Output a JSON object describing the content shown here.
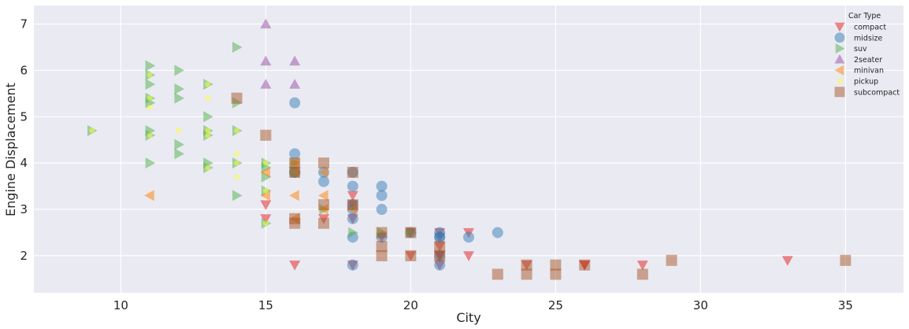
{
  "chart_data": {
    "type": "scatter",
    "xlabel": "City",
    "ylabel": "Engine Displacement",
    "xlim": [
      7,
      37
    ],
    "ylim": [
      1.2,
      7.4
    ],
    "xticks": [
      10,
      15,
      20,
      25,
      30,
      35
    ],
    "yticks": [
      2,
      3,
      4,
      5,
      6,
      7
    ],
    "grid": true,
    "legend": {
      "title": "Car Type",
      "placement": "top-right"
    },
    "series": [
      {
        "name": "compact",
        "marker": "triangle-down",
        "color": "#e41a1c",
        "points": [
          [
            18,
            1.8
          ],
          [
            21,
            1.8
          ],
          [
            20,
            2.0
          ],
          [
            21,
            2.0
          ],
          [
            15,
            2.8
          ],
          [
            18,
            2.8
          ],
          [
            18,
            3.1
          ],
          [
            21,
            2.0
          ],
          [
            21,
            2.4
          ],
          [
            22,
            2.0
          ],
          [
            22,
            2.5
          ],
          [
            24,
            1.8
          ],
          [
            26,
            1.8
          ],
          [
            28,
            1.8
          ],
          [
            33,
            1.9
          ],
          [
            16,
            1.8
          ],
          [
            20,
            2.5
          ],
          [
            21,
            2.5
          ],
          [
            15,
            3.1
          ],
          [
            17,
            2.8
          ],
          [
            18,
            3.3
          ],
          [
            19,
            2.4
          ],
          [
            21,
            2.2
          ],
          [
            26,
            1.8
          ]
        ]
      },
      {
        "name": "midsize",
        "marker": "circle",
        "color": "#377eb8",
        "points": [
          [
            16,
            5.3
          ],
          [
            16,
            3.8
          ],
          [
            17,
            3.8
          ],
          [
            18,
            3.8
          ],
          [
            16,
            4.2
          ],
          [
            17,
            3.6
          ],
          [
            18,
            3.5
          ],
          [
            19,
            3.5
          ],
          [
            19,
            3.3
          ],
          [
            19,
            3.0
          ],
          [
            18,
            3.1
          ],
          [
            18,
            2.8
          ],
          [
            18,
            2.4
          ],
          [
            19,
            2.4
          ],
          [
            21,
            2.4
          ],
          [
            21,
            2.5
          ],
          [
            21,
            2.4
          ],
          [
            22,
            2.4
          ],
          [
            23,
            2.5
          ],
          [
            21,
            1.8
          ],
          [
            18,
            1.8
          ],
          [
            16,
            3.8
          ],
          [
            18,
            3.0
          ],
          [
            20,
            2.5
          ],
          [
            21,
            2.0
          ]
        ]
      },
      {
        "name": "suv",
        "marker": "triangle-right",
        "color": "#4daf4a",
        "points": [
          [
            9,
            4.7
          ],
          [
            11,
            6.1
          ],
          [
            11,
            5.9
          ],
          [
            11,
            5.7
          ],
          [
            11,
            5.4
          ],
          [
            11,
            5.3
          ],
          [
            11,
            4.7
          ],
          [
            11,
            4.6
          ],
          [
            11,
            4.0
          ],
          [
            12,
            6.0
          ],
          [
            12,
            5.6
          ],
          [
            12,
            5.4
          ],
          [
            12,
            4.4
          ],
          [
            12,
            4.2
          ],
          [
            13,
            5.7
          ],
          [
            13,
            5.0
          ],
          [
            13,
            4.7
          ],
          [
            13,
            4.6
          ],
          [
            13,
            4.0
          ],
          [
            13,
            3.9
          ],
          [
            14,
            6.5
          ],
          [
            14,
            5.3
          ],
          [
            14,
            4.7
          ],
          [
            14,
            4.0
          ],
          [
            14,
            3.3
          ],
          [
            15,
            4.0
          ],
          [
            15,
            3.7
          ],
          [
            15,
            3.4
          ],
          [
            15,
            2.7
          ],
          [
            16,
            4.0
          ],
          [
            16,
            3.8
          ],
          [
            17,
            3.0
          ],
          [
            18,
            2.5
          ],
          [
            19,
            2.5
          ],
          [
            20,
            2.5
          ],
          [
            15,
            3.9
          ]
        ]
      },
      {
        "name": "2seater",
        "marker": "triangle-up",
        "color": "#984ea3",
        "points": [
          [
            15,
            7.0
          ],
          [
            15,
            6.2
          ],
          [
            16,
            6.2
          ],
          [
            15,
            5.7
          ],
          [
            16,
            5.7
          ]
        ]
      },
      {
        "name": "minivan",
        "marker": "triangle-left",
        "color": "#ff7f00",
        "points": [
          [
            11,
            3.3
          ],
          [
            15,
            3.8
          ],
          [
            16,
            3.8
          ],
          [
            16,
            3.3
          ],
          [
            17,
            3.3
          ],
          [
            17,
            3.8
          ],
          [
            16,
            4.0
          ],
          [
            15,
            3.3
          ],
          [
            18,
            3.0
          ],
          [
            17,
            3.0
          ],
          [
            16,
            2.8
          ]
        ]
      },
      {
        "name": "pickup",
        "marker": "circle-small",
        "color": "#ffff33",
        "points": [
          [
            9,
            4.7
          ],
          [
            11,
            5.9
          ],
          [
            11,
            5.4
          ],
          [
            11,
            5.2
          ],
          [
            12,
            4.7
          ],
          [
            13,
            5.4
          ],
          [
            13,
            4.7
          ],
          [
            13,
            4.6
          ],
          [
            13,
            3.9
          ],
          [
            14,
            4.7
          ],
          [
            14,
            4.2
          ],
          [
            14,
            4.0
          ],
          [
            14,
            3.7
          ],
          [
            15,
            4.0
          ],
          [
            15,
            3.4
          ],
          [
            15,
            2.7
          ],
          [
            13,
            5.7
          ],
          [
            11,
            4.6
          ]
        ]
      },
      {
        "name": "subcompact",
        "marker": "square",
        "color": "#a65628",
        "points": [
          [
            14,
            5.4
          ],
          [
            15,
            4.6
          ],
          [
            16,
            4.0
          ],
          [
            17,
            4.0
          ],
          [
            18,
            3.8
          ],
          [
            16,
            2.8
          ],
          [
            16,
            2.7
          ],
          [
            17,
            2.7
          ],
          [
            18,
            3.1
          ],
          [
            19,
            2.5
          ],
          [
            19,
            2.2
          ],
          [
            19,
            2.0
          ],
          [
            20,
            2.5
          ],
          [
            20,
            2.0
          ],
          [
            21,
            2.2
          ],
          [
            21,
            2.0
          ],
          [
            23,
            1.6
          ],
          [
            24,
            1.8
          ],
          [
            24,
            1.6
          ],
          [
            25,
            1.8
          ],
          [
            25,
            1.6
          ],
          [
            26,
            1.8
          ],
          [
            28,
            1.6
          ],
          [
            29,
            1.9
          ],
          [
            35,
            1.9
          ],
          [
            16,
            3.8
          ],
          [
            17,
            3.1
          ]
        ]
      }
    ]
  }
}
